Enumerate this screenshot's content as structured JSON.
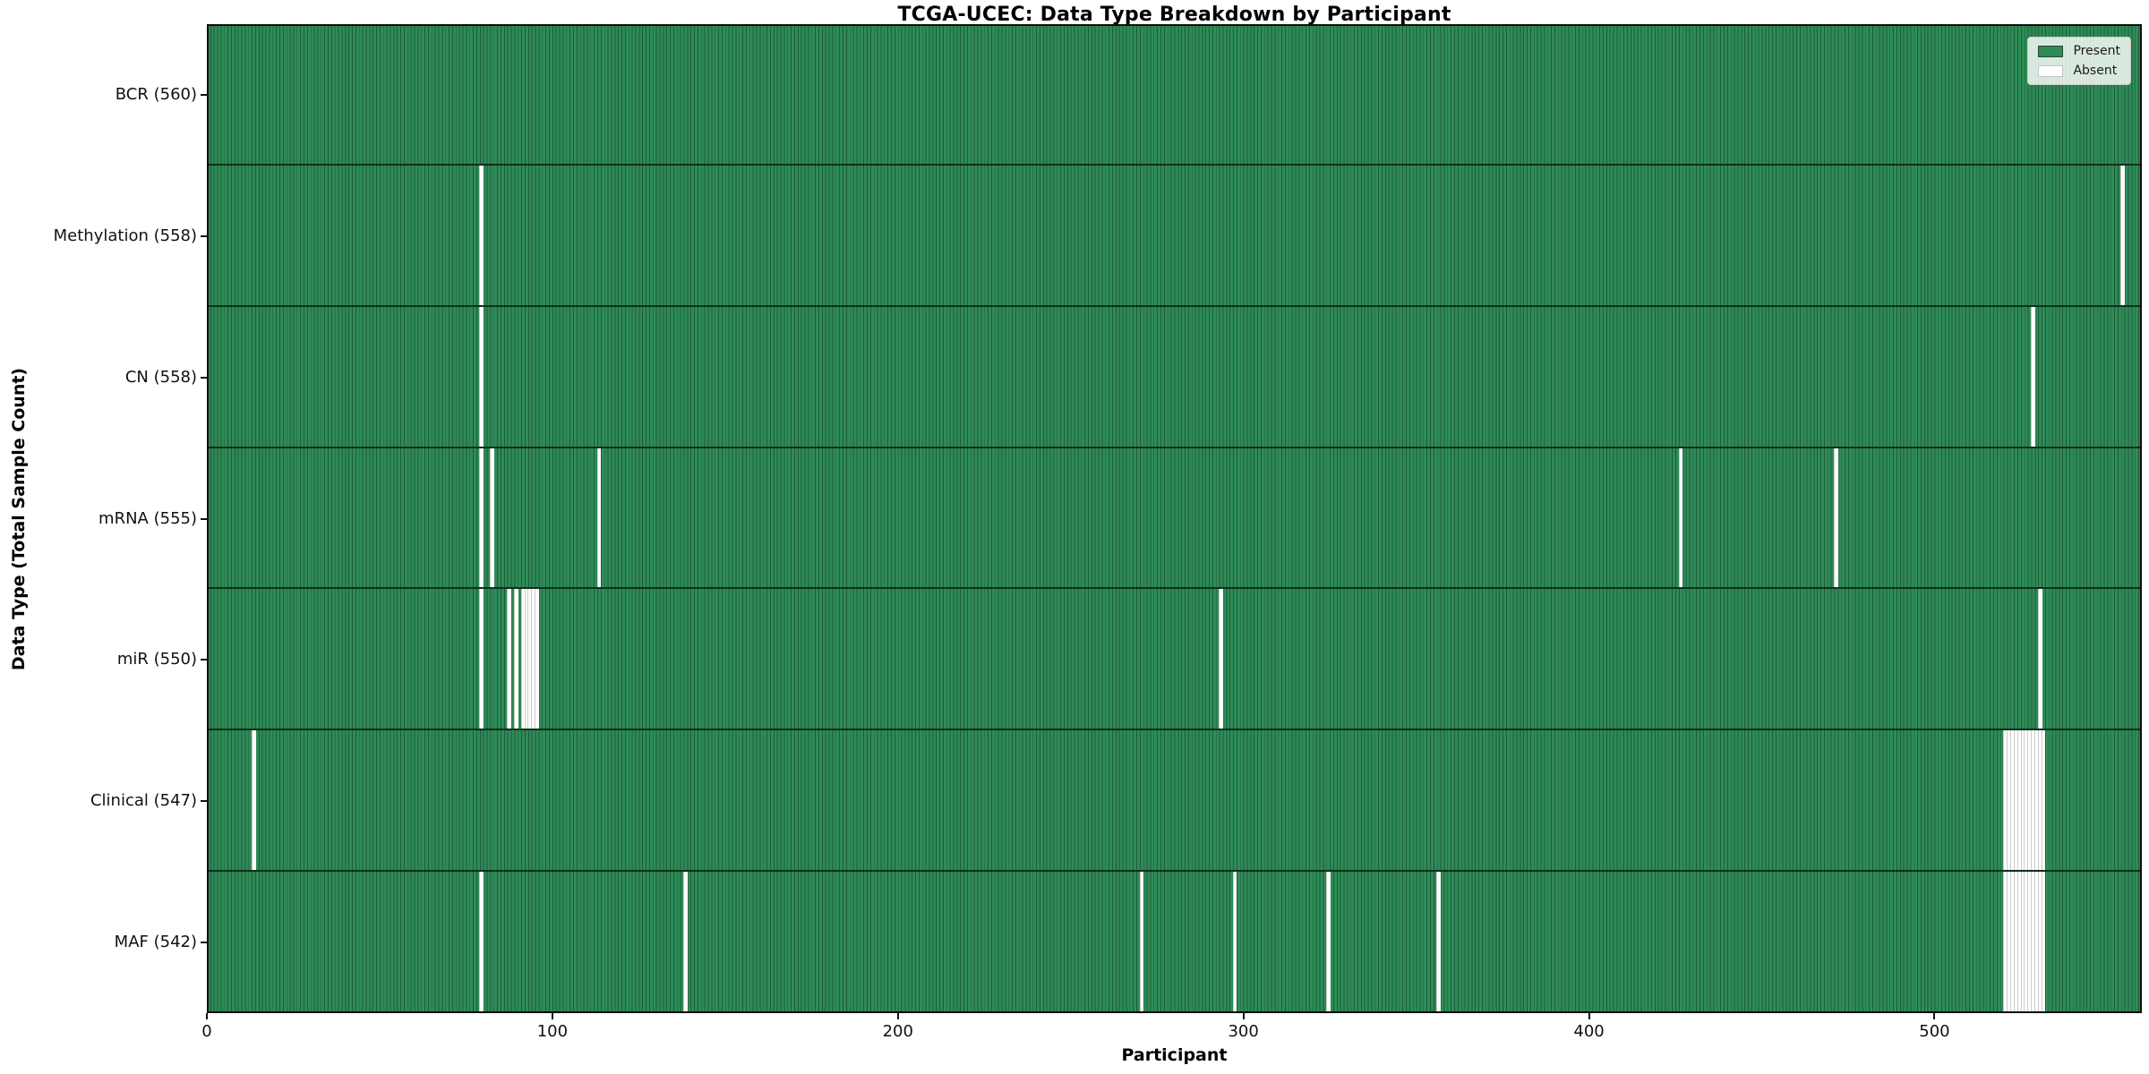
{
  "chart_data": {
    "type": "heatmap",
    "title": "TCGA-UCEC: Data Type Breakdown by Participant",
    "xlabel": "Participant",
    "ylabel": "Data Type (Total Sample Count)",
    "x_ticks": [
      0,
      100,
      200,
      300,
      400,
      500
    ],
    "x_range": [
      0,
      560
    ],
    "n_participants": 560,
    "grid": false,
    "colors": {
      "present": "#2e8b57",
      "present_edge": "#1d5c39",
      "absent": "#ffffff",
      "row_separator": "#0a2014",
      "spine": "#0d0d0d"
    },
    "legend": {
      "position": "upper right",
      "entries": [
        {
          "label": "Present",
          "color": "#2e8b57"
        },
        {
          "label": "Absent",
          "color": "#ffffff"
        }
      ]
    },
    "rows": [
      {
        "label": "BCR (560)",
        "data_type": "BCR",
        "present_count": 560,
        "absent_participants": []
      },
      {
        "label": "Methylation (558)",
        "data_type": "Methylation",
        "present_count": 558,
        "absent_participants": [
          79,
          554
        ]
      },
      {
        "label": "CN (558)",
        "data_type": "CN",
        "present_count": 558,
        "absent_participants": [
          79,
          528
        ]
      },
      {
        "label": "mRNA (555)",
        "data_type": "mRNA",
        "present_count": 555,
        "absent_participants": [
          79,
          82,
          113,
          426,
          471
        ]
      },
      {
        "label": "miR (550)",
        "data_type": "miR",
        "present_count": 550,
        "absent_participants": [
          79,
          87,
          89,
          91,
          92,
          93,
          94,
          95,
          293,
          530
        ]
      },
      {
        "label": "Clinical (547)",
        "data_type": "Clinical",
        "present_count": 547,
        "absent_participants": [
          13,
          520,
          521,
          522,
          523,
          524,
          525,
          526,
          527,
          528,
          529,
          530,
          531
        ]
      },
      {
        "label": "MAF (542)",
        "data_type": "MAF",
        "present_count": 542,
        "absent_participants": [
          79,
          138,
          270,
          297,
          324,
          356,
          520,
          521,
          522,
          523,
          524,
          525,
          526,
          527,
          528,
          529,
          530,
          531
        ]
      }
    ]
  }
}
